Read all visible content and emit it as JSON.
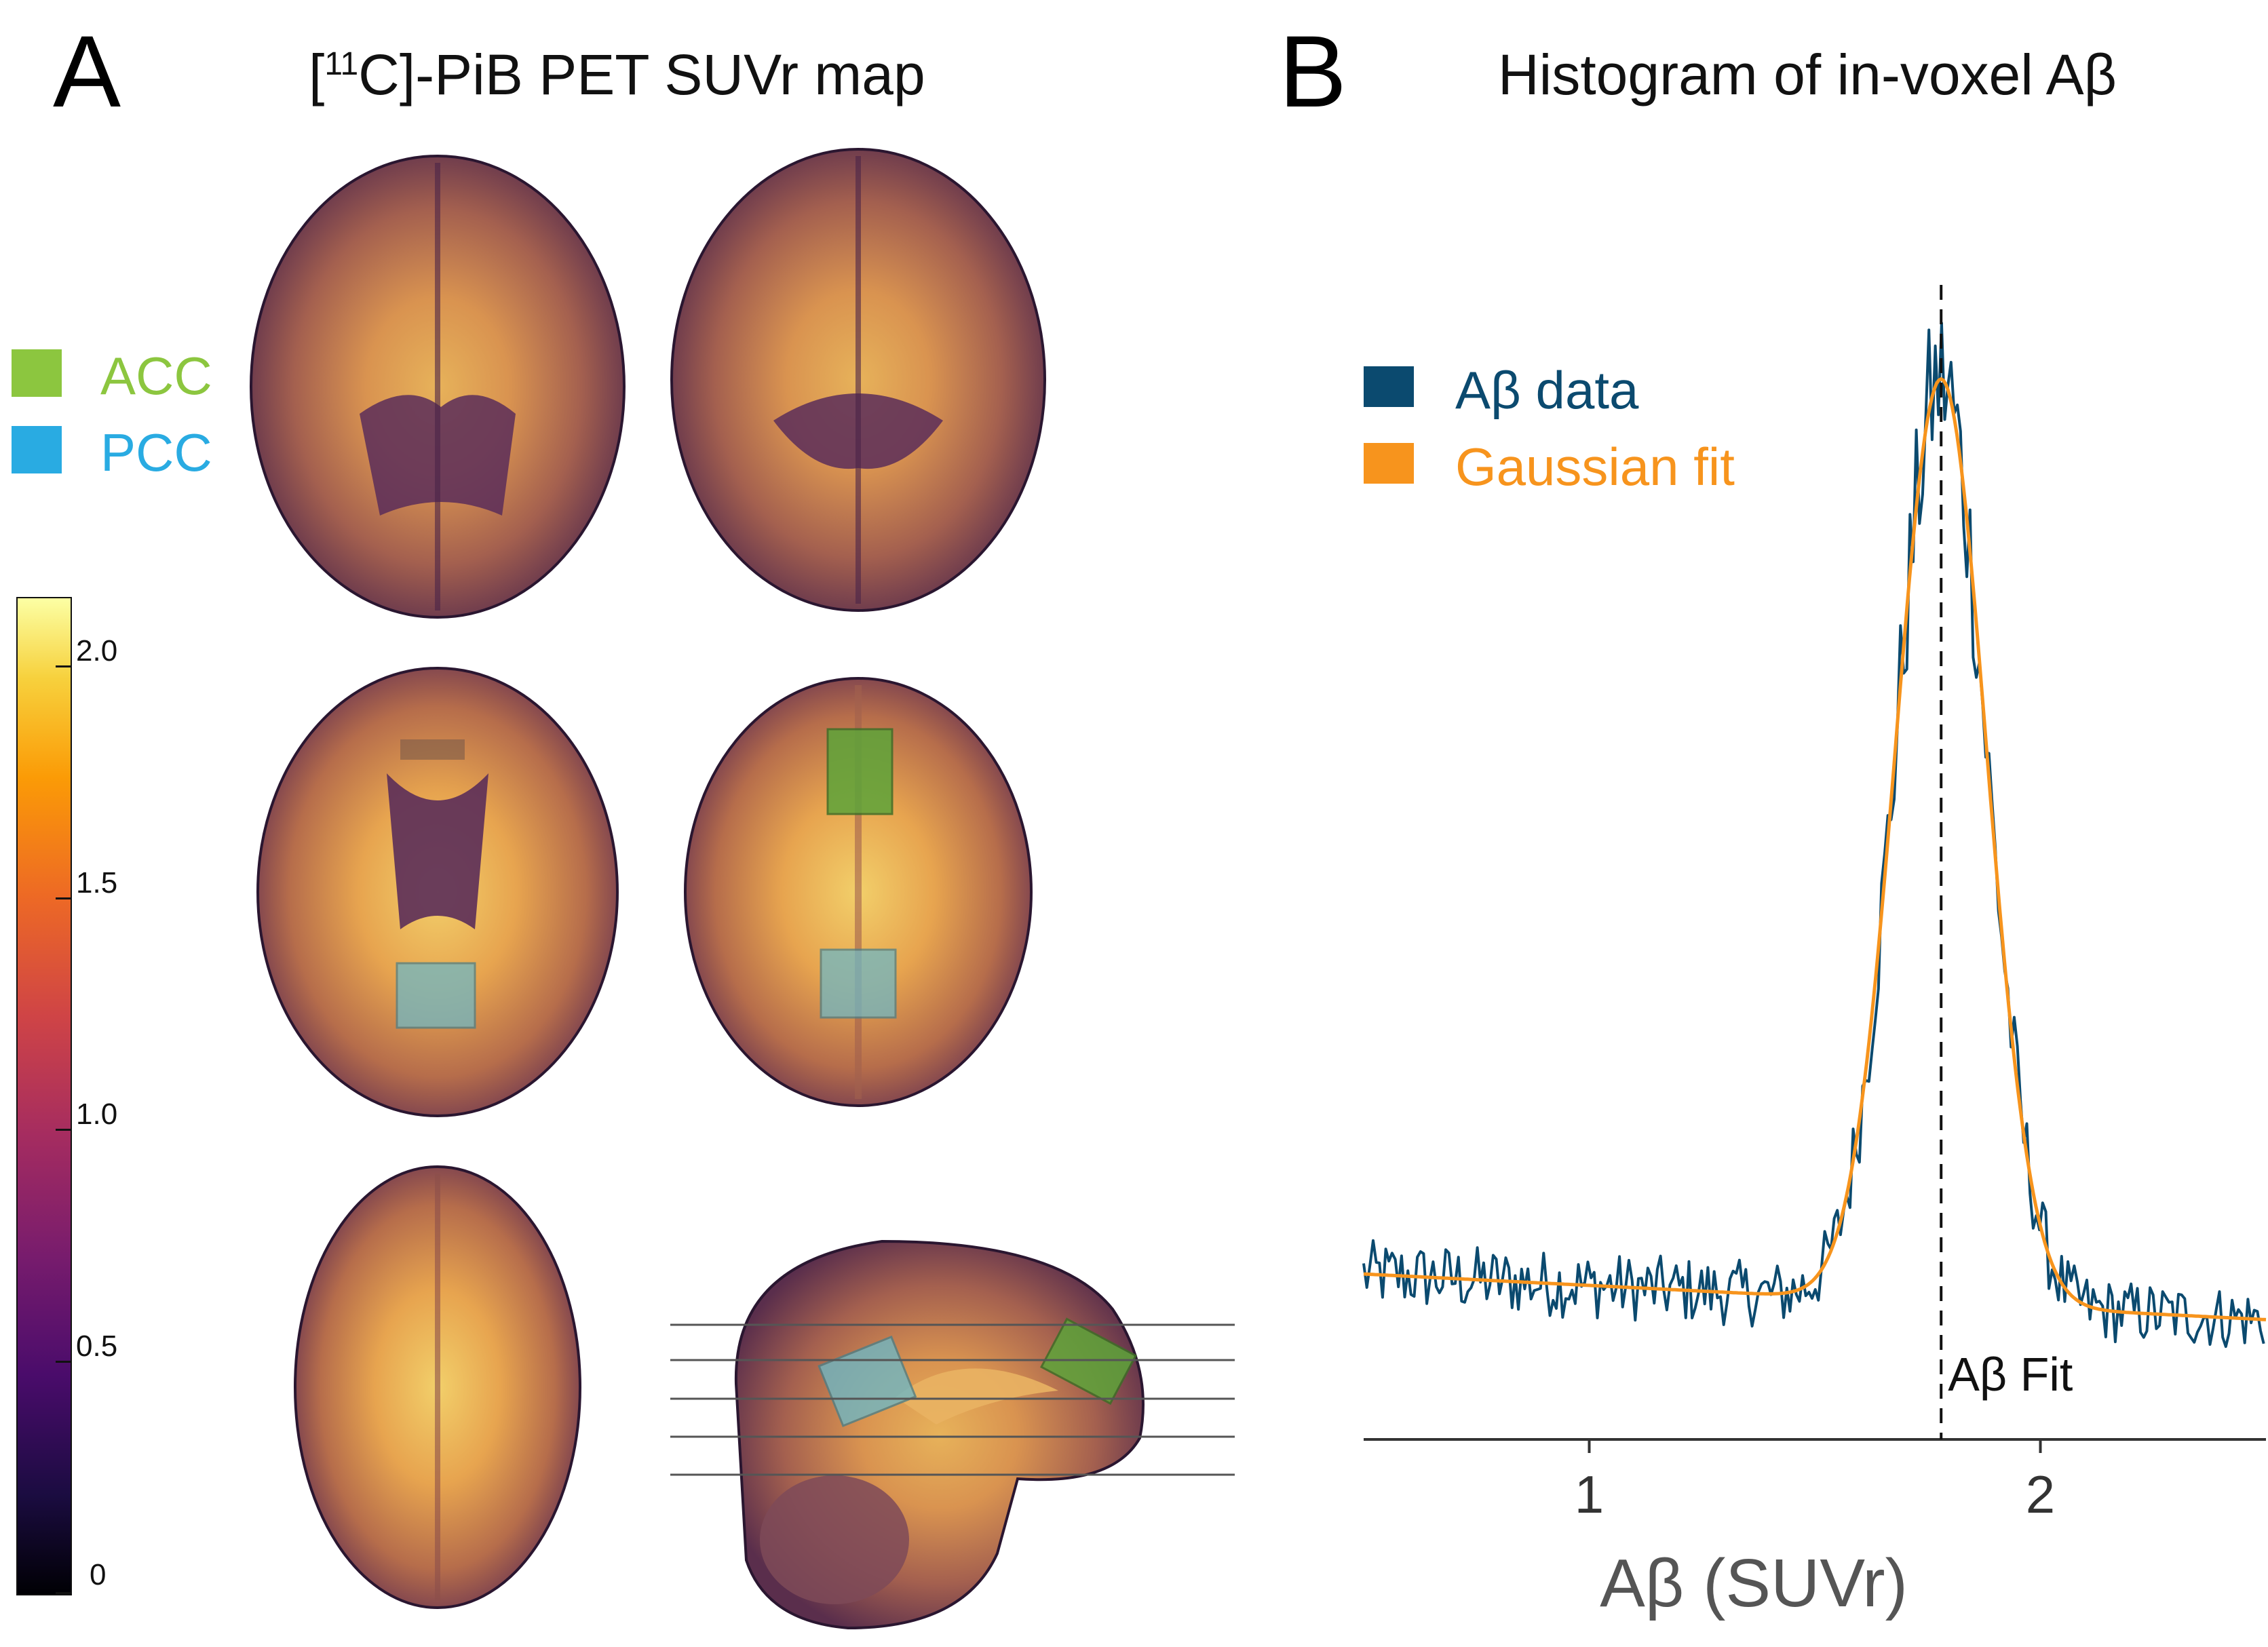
{
  "panel_a": {
    "letter": "A",
    "title_prefix": "[",
    "title_super": "11",
    "title_suffix": "C]-PiB PET SUVr map",
    "roi_legend": [
      {
        "label": "ACC",
        "color": "#8cc63f"
      },
      {
        "label": "PCC",
        "color": "#29abe2"
      }
    ],
    "colorbar": {
      "colormap": "inferno",
      "ticks": [
        "0",
        "0.5",
        "1.0",
        "1.5",
        "2.0"
      ],
      "tick_values": [
        0,
        0.5,
        1.0,
        1.5,
        2.0
      ],
      "max": 2.15
    }
  },
  "panel_b": {
    "letter": "B",
    "title": "Histogram of in-voxel Aβ"
  },
  "chart_data": {
    "type": "line",
    "title": "Histogram of in-voxel Aβ",
    "xlabel": "Aβ (SUVr)",
    "ylabel": "",
    "xlim": [
      0.5,
      2.5
    ],
    "ylim": [
      0,
      1
    ],
    "xticks": [
      1,
      2
    ],
    "grid": false,
    "legend_position": "top-left",
    "series": [
      {
        "name": "Aβ data",
        "color": "#0b4a6f",
        "style": "noisy histogram around fit"
      },
      {
        "name": "Gaussian fit",
        "color": "#f7941d",
        "model": {
          "baseline": 0.145,
          "baseline_slope": -0.02,
          "amplitude": 0.81,
          "mu": 1.78,
          "sigma": 0.1
        }
      }
    ],
    "annotations": [
      {
        "type": "vline",
        "x": 1.78,
        "style": "dashed",
        "label": "Aβ Fit"
      }
    ]
  },
  "colors": {
    "data_line": "#0b4a6f",
    "fit_line": "#f7941d",
    "axis": "#333333"
  }
}
